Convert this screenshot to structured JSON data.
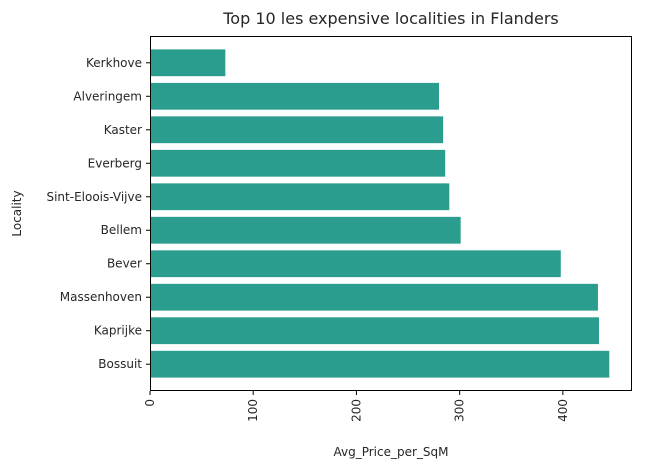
{
  "chart_data": {
    "type": "bar",
    "orientation": "horizontal",
    "title": "Top 10 les expensive localities in Flanders",
    "xlabel": "Avg_Price_per_SqM",
    "ylabel": "Locality",
    "categories": [
      "Bossuit",
      "Kaprijke",
      "Massenhoven",
      "Bever",
      "Bellem",
      "Sint-Eloois-Vijve",
      "Everberg",
      "Kaster",
      "Alveringem",
      "Kerkhove"
    ],
    "values": [
      445,
      435,
      434,
      398,
      301,
      290,
      286,
      284,
      280,
      73
    ],
    "xlim": [
      0,
      467
    ],
    "xticks": [
      0,
      100,
      200,
      300,
      400
    ],
    "x_tick_rotation": 90,
    "grid": false,
    "bar_color": "#2a9d8f"
  }
}
